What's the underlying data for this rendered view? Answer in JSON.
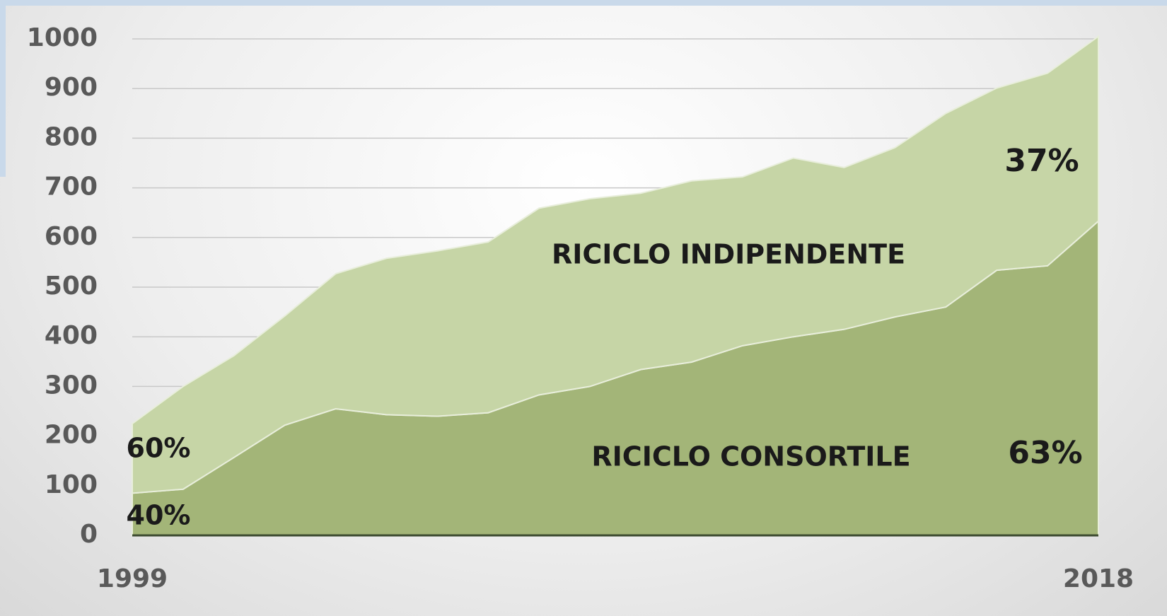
{
  "chart_data": {
    "type": "stacked_area",
    "categories": [
      "1999",
      null,
      null,
      null,
      null,
      null,
      null,
      null,
      null,
      null,
      null,
      null,
      null,
      null,
      null,
      null,
      null,
      null,
      null,
      "2018"
    ],
    "series": [
      {
        "name": "RICICLO CONSORTILE",
        "color": "#a3b578",
        "values": [
          85,
          93,
          157,
          222,
          255,
          243,
          240,
          247,
          283,
          300,
          334,
          349,
          382,
          400,
          415,
          440,
          460,
          534,
          543,
          633
        ]
      },
      {
        "name": "RICICLO INDIPENDENTE",
        "color": "#c6d5a6",
        "values": [
          140,
          207,
          205,
          220,
          272,
          315,
          333,
          344,
          376,
          378,
          355,
          365,
          340,
          360,
          326,
          341,
          390,
          367,
          388,
          372
        ]
      }
    ],
    "ylim": [
      0,
      1000
    ],
    "yticks": [
      0,
      100,
      200,
      300,
      400,
      500,
      600,
      700,
      800,
      900,
      1000
    ],
    "grid": true,
    "annotations": [
      "60%",
      "40%",
      "37%",
      "63%"
    ]
  }
}
